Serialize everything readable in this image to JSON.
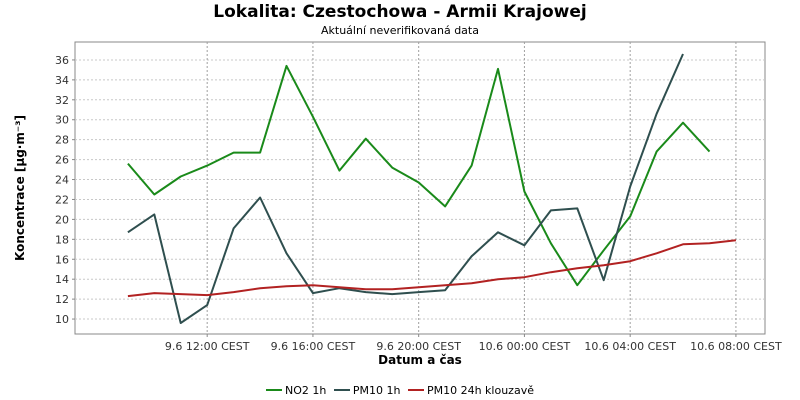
{
  "title": "Lokalita: Czestochowa - Armii Krajowej",
  "subtitle": "Aktuální neverifikovaná data",
  "legend": [
    {
      "label": "NO2 1h",
      "color": "#1a8a1a"
    },
    {
      "label": "PM10 1h",
      "color": "#2f4f4f"
    },
    {
      "label": "PM10 24h klouzavě",
      "color": "#b22222"
    }
  ],
  "chart_data": {
    "type": "line",
    "xlabel": "Datum a čas",
    "ylabel": "Koncentrace [µg·m⁻³]",
    "ylim": [
      8.5,
      37.8
    ],
    "yticks": [
      10,
      12,
      14,
      16,
      18,
      20,
      22,
      24,
      26,
      28,
      30,
      32,
      34,
      36
    ],
    "xlim": [
      7.0,
      9.1
    ],
    "xticks": [
      {
        "x": 12,
        "label": "9.6 12:00 CEST"
      },
      {
        "x": 16,
        "label": "9.6 16:00 CEST"
      },
      {
        "x": 20,
        "label": "9.6 20:00 CEST"
      },
      {
        "x": 24,
        "label": "10.6 00:00 CEST"
      },
      {
        "x": 28,
        "label": "10.6 04:00 CEST"
      },
      {
        "x": 32,
        "label": "10.6 08:00 CEST"
      }
    ],
    "x": [
      9,
      10,
      11,
      12,
      13,
      14,
      15,
      16,
      17,
      18,
      19,
      20,
      21,
      22,
      23,
      24,
      25,
      26,
      27,
      28,
      29,
      30,
      31,
      32
    ],
    "grid": true,
    "series": [
      {
        "name": "NO2 1h",
        "color": "#1a8a1a",
        "values": [
          25.6,
          22.5,
          24.3,
          25.4,
          26.7,
          26.7,
          35.4,
          30.3,
          24.9,
          28.1,
          25.2,
          23.7,
          21.3,
          25.4,
          35.1,
          22.8,
          17.6,
          13.4,
          16.9,
          20.3,
          26.8,
          29.7,
          26.8,
          null
        ]
      },
      {
        "name": "PM10 1h",
        "color": "#2f4f4f",
        "values": [
          18.7,
          20.5,
          9.6,
          11.4,
          19.1,
          22.2,
          16.6,
          12.6,
          13.1,
          12.7,
          12.5,
          12.7,
          12.9,
          16.3,
          18.7,
          17.4,
          20.9,
          21.1,
          13.9,
          23.3,
          30.6,
          36.6,
          null,
          null
        ]
      },
      {
        "name": "PM10 24h klouzavě",
        "color": "#b22222",
        "values": [
          12.3,
          12.6,
          12.5,
          12.4,
          12.7,
          13.1,
          13.3,
          13.4,
          13.2,
          13.0,
          13.0,
          13.2,
          13.4,
          13.6,
          14.0,
          14.2,
          14.7,
          15.1,
          15.4,
          15.8,
          16.6,
          17.5,
          17.6,
          17.9
        ]
      }
    ]
  }
}
